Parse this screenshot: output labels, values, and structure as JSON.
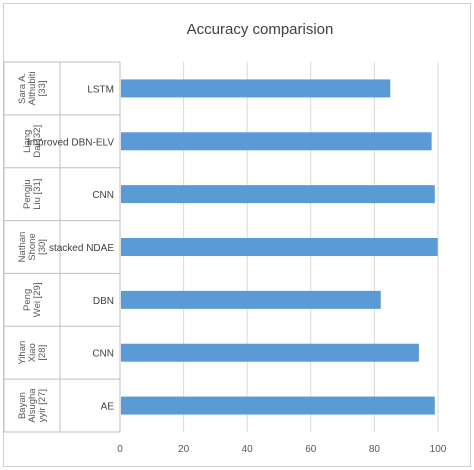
{
  "chart_data": {
    "type": "bar",
    "orientation": "horizontal",
    "title": "Accuracy comparision",
    "xlabel": "",
    "ylabel": "",
    "xlim": [
      0,
      100
    ],
    "xticks": [
      0,
      20,
      40,
      60,
      80,
      100
    ],
    "grid": true,
    "legend": "none",
    "bar_color": "#5b9bd5",
    "categories": [
      {
        "group": [
          "Sara A.",
          "Althubiti",
          "[33]"
        ],
        "label": "LSTM",
        "value": 85
      },
      {
        "group": [
          "Liang",
          "Dai [32]"
        ],
        "label": "improved DBN-ELV",
        "value": 98
      },
      {
        "group": [
          "Pengju",
          "Liu [31]"
        ],
        "label": "CNN",
        "value": 99
      },
      {
        "group": [
          "Nathan",
          "Shone",
          "[30]"
        ],
        "label": "stacked NDAE",
        "value": 99.9
      },
      {
        "group": [
          "Peng",
          "Wei [29]"
        ],
        "label": "DBN",
        "value": 82
      },
      {
        "group": [
          "Yihan",
          "Xiao",
          "[28]"
        ],
        "label": "CNN",
        "value": 94
      },
      {
        "group": [
          "Bayan",
          "Alsugha",
          "yyir [27]"
        ],
        "label": "AE",
        "value": 99
      }
    ]
  }
}
